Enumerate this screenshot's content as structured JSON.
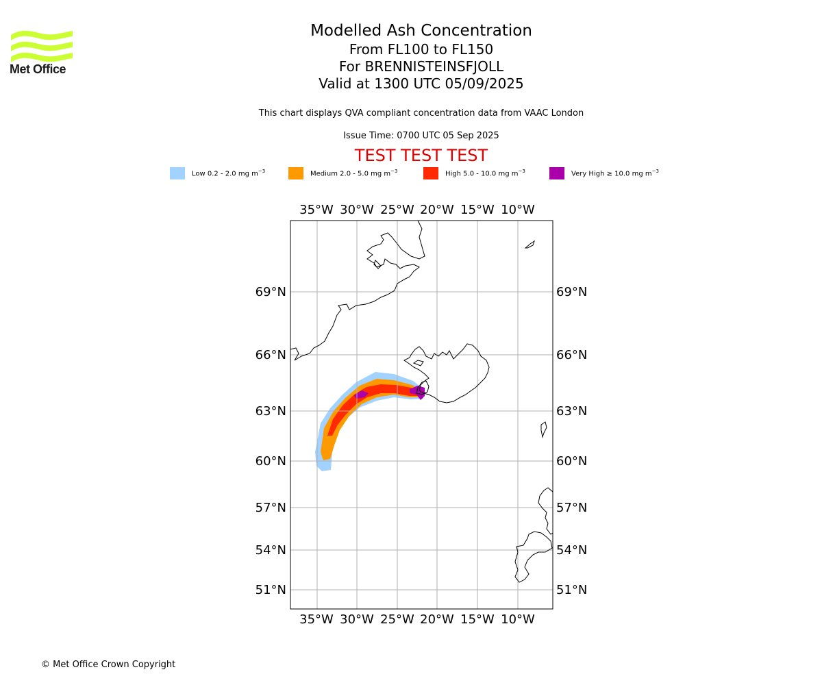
{
  "logo": {
    "text": "Met Office",
    "color": "#ccff33"
  },
  "title": {
    "line1": "Modelled Ash Concentration",
    "line2": "From FL100 to FL150",
    "line3": "For BRENNISTEINSFJOLL",
    "line4": "Valid at 1300 UTC 05/09/2025"
  },
  "note": "This chart displays QVA compliant concentration data from VAAC London",
  "issue_time": "Issue Time: 0700 UTC 05 Sep 2025",
  "test_banner": "TEST TEST TEST",
  "legend": [
    {
      "label": "Low 0.2 - 2.0 mg m",
      "sup": "−3",
      "color": "#a2d2ff"
    },
    {
      "label": "Medium 2.0 - 5.0 mg m",
      "sup": "−3",
      "color": "#ff9900"
    },
    {
      "label": "High 5.0 - 10.0 mg m",
      "sup": "−3",
      "color": "#ff2a00"
    },
    {
      "label": "Very High  ≥  10.0 mg m",
      "sup": "−3",
      "color": "#aa00aa"
    }
  ],
  "map": {
    "lon_labels": [
      "35°W",
      "30°W",
      "25°W",
      "20°W",
      "15°W",
      "10°W"
    ],
    "lat_labels": [
      "69°N",
      "66°N",
      "63°N",
      "60°N",
      "57°N",
      "54°N",
      "51°N"
    ]
  },
  "footer": "© Met Office Crown Copyright"
}
